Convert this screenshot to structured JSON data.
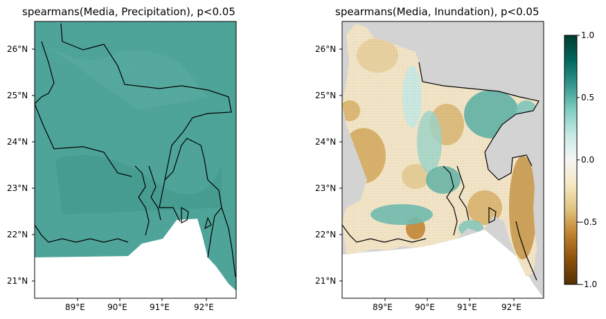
{
  "left_map": {
    "title": "spearmans(Media, Precipitation), p<0.05",
    "lat_ticks": [
      "26°N",
      "25°N",
      "24°N",
      "23°N",
      "22°N",
      "21°N"
    ],
    "lon_ticks": [
      "89°E",
      "90°E",
      "91°E",
      "92°E"
    ],
    "fill_color": "#4fa59a",
    "mask_color": "#ffffff"
  },
  "right_map": {
    "title": "spearmans(Media, Inundation), p<0.05",
    "lat_ticks": [
      "26°N",
      "25°N",
      "24°N",
      "23°N",
      "22°N",
      "21°N"
    ],
    "lon_ticks": [
      "89°E",
      "90°E",
      "91°E",
      "92°E"
    ],
    "background_color": "#d3d3d3"
  },
  "colorbar": {
    "colormap": "BrBG",
    "ticks": [
      "1.0",
      "0.5",
      "0.0",
      "−0.5",
      "−1.0"
    ],
    "range": [
      -1.0,
      1.0
    ],
    "colors": [
      "#003c30",
      "#01665e",
      "#35978f",
      "#80cdc1",
      "#c7eae5",
      "#f5f5f5",
      "#f6e8c3",
      "#dfc27d",
      "#bf812d",
      "#8c510a",
      "#543005"
    ]
  }
}
